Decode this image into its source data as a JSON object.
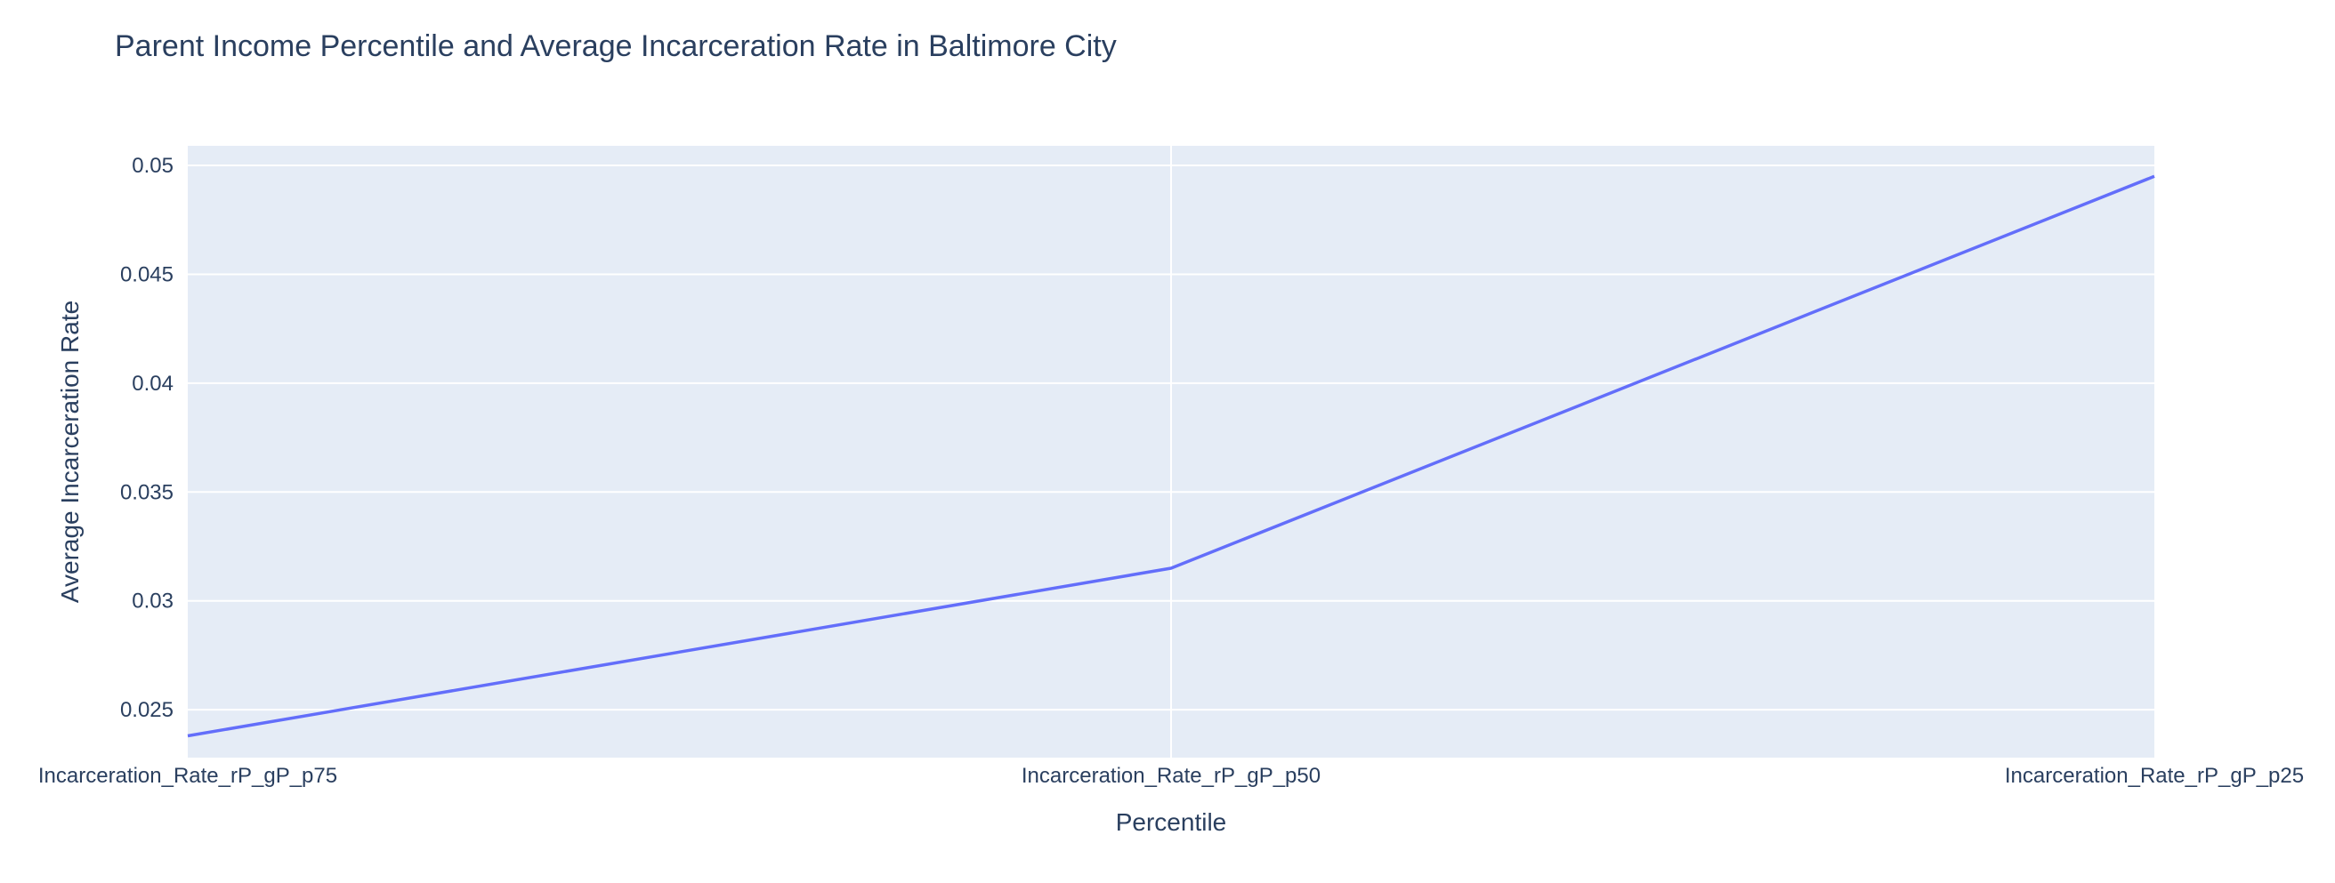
{
  "colors": {
    "plot_background": "#e5ecf6",
    "grid": "#ffffff",
    "line": "#636efa",
    "text": "#2a3f5f"
  },
  "chart_data": {
    "type": "line",
    "title": "Parent Income Percentile and Average Incarceration Rate in Baltimore City",
    "xlabel": "Percentile",
    "ylabel": "Average Incarceration Rate",
    "categories": [
      "Incarceration_Rate_rP_gP_p75",
      "Incarceration_Rate_rP_gP_p50",
      "Incarceration_Rate_rP_gP_p25"
    ],
    "series": [
      {
        "values": [
          0.0238,
          0.0315,
          0.0495
        ]
      }
    ],
    "ylim": [
      0.0228,
      0.0509
    ],
    "yticks": [
      0.025,
      0.03,
      0.035,
      0.04,
      0.045,
      0.05
    ],
    "ytick_labels": [
      "0.025",
      "0.03",
      "0.035",
      "0.04",
      "0.045",
      "0.05"
    ],
    "grid": true,
    "legend": "none"
  }
}
